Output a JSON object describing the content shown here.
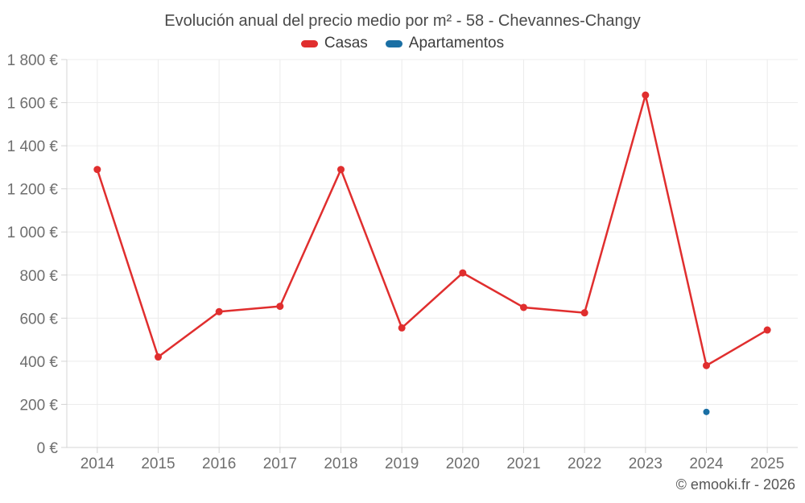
{
  "chart_data": {
    "type": "line",
    "title": "Evolución anual del precio medio por m² - 58 - Chevannes-Changy",
    "categories": [
      "2014",
      "2015",
      "2016",
      "2017",
      "2018",
      "2019",
      "2020",
      "2021",
      "2022",
      "2023",
      "2024",
      "2025"
    ],
    "series": [
      {
        "name": "Casas",
        "color": "#e02e2e",
        "values": [
          1290,
          420,
          630,
          655,
          1290,
          555,
          810,
          650,
          625,
          1635,
          380,
          545
        ]
      },
      {
        "name": "Apartamentos",
        "color": "#1a6fa4",
        "values": [
          null,
          null,
          null,
          null,
          null,
          null,
          null,
          null,
          null,
          null,
          165,
          null
        ]
      }
    ],
    "ylim": [
      0,
      1800
    ],
    "ytick_step": 200,
    "y_unit": "€",
    "grid": true,
    "legend_position": "top"
  },
  "footer": {
    "attribution": "© emooki.fr - 2026"
  }
}
